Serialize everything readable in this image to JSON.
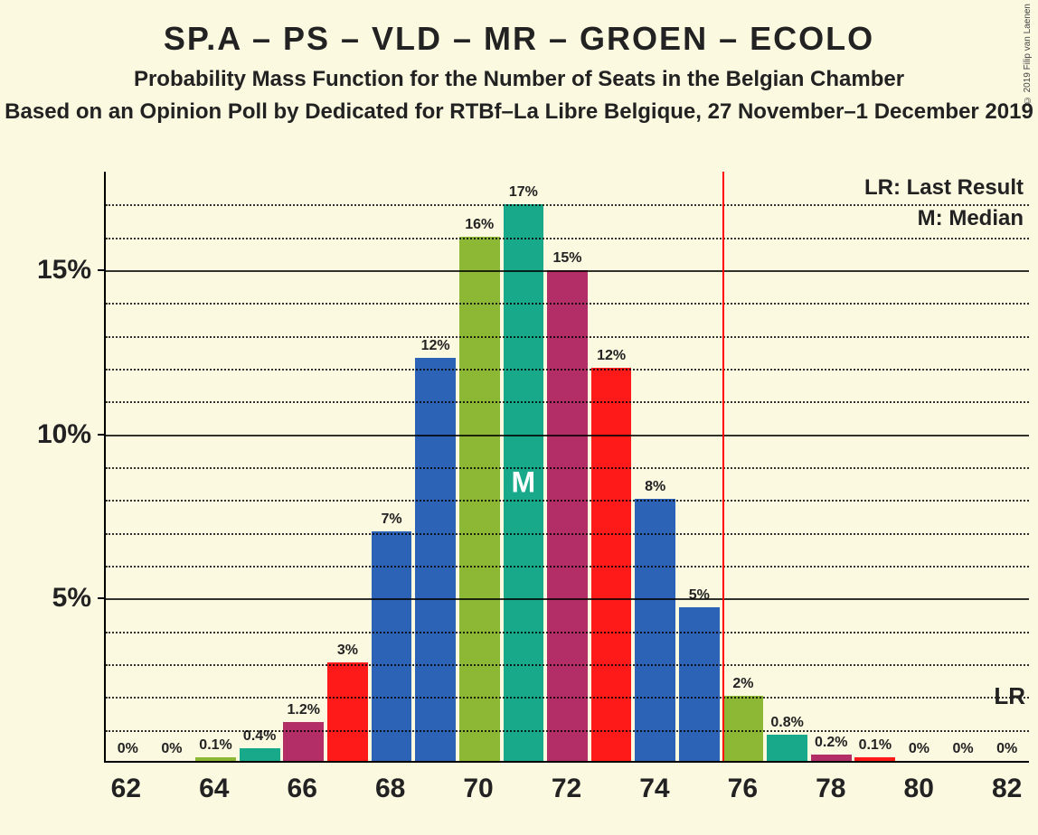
{
  "title": "SP.A – PS – VLD – MR – GROEN – ECOLO",
  "subtitle": "Probability Mass Function for the Number of Seats in the Belgian Chamber",
  "subtitle2": "Based on an Opinion Poll by Dedicated for RTBf–La Libre Belgique, 27 November–1 December 2019",
  "copyright": "© 2019 Filip van Laenen",
  "legend": {
    "lr": "LR: Last Result",
    "median": "M: Median"
  },
  "chart": {
    "type": "bar",
    "background": "#fbf9e0",
    "ymax": 18,
    "yticks_major": [
      5,
      10,
      15
    ],
    "yticks_minor": [
      1,
      2,
      3,
      4,
      6,
      7,
      8,
      9,
      11,
      12,
      13,
      14,
      16,
      17
    ],
    "xticks": [
      62,
      64,
      66,
      68,
      70,
      72,
      74,
      76,
      78,
      80,
      82
    ],
    "xmin": 61.5,
    "xmax": 82.5,
    "bar_width": 0.92,
    "median_seat": 71,
    "median_label": "M",
    "median_text_color": "#ffffff",
    "lr_seat": 76,
    "lr_label": "LR",
    "lr_line_color": "#ff0000",
    "colors_cycle": [
      "#2d63b7",
      "#8cb836",
      "#17a98a",
      "#b32d66",
      "#ff1a1a"
    ],
    "bars": [
      {
        "x": 62,
        "v": 0,
        "label": "0%",
        "color": "#b32d66"
      },
      {
        "x": 63,
        "v": 0,
        "label": "0%",
        "color": "#ff1a1a"
      },
      {
        "x": 64,
        "v": 0.1,
        "label": "0.1%",
        "color": "#8cb836"
      },
      {
        "x": 65,
        "v": 0.4,
        "label": "0.4%",
        "color": "#17a98a"
      },
      {
        "x": 66,
        "v": 1.2,
        "label": "1.2%",
        "color": "#b32d66"
      },
      {
        "x": 67,
        "v": 3,
        "label": "3%",
        "color": "#ff1a1a"
      },
      {
        "x": 68,
        "v": 7,
        "label": "7%",
        "color": "#2d63b7"
      },
      {
        "x": 69,
        "v": 12.3,
        "label": "12%",
        "color": "#2d63b7"
      },
      {
        "x": 70,
        "v": 16,
        "label": "16%",
        "color": "#8cb836"
      },
      {
        "x": 71,
        "v": 17,
        "label": "17%",
        "color": "#17a98a"
      },
      {
        "x": 72,
        "v": 15,
        "label": "15%",
        "color": "#b32d66"
      },
      {
        "x": 73,
        "v": 12,
        "label": "12%",
        "color": "#ff1a1a"
      },
      {
        "x": 74,
        "v": 8,
        "label": "8%",
        "color": "#2d63b7"
      },
      {
        "x": 75,
        "v": 4.7,
        "label": "5%",
        "color": "#2d63b7"
      },
      {
        "x": 76,
        "v": 2,
        "label": "2%",
        "color": "#8cb836"
      },
      {
        "x": 77,
        "v": 0.8,
        "label": "0.8%",
        "color": "#17a98a"
      },
      {
        "x": 78,
        "v": 0.2,
        "label": "0.2%",
        "color": "#b32d66"
      },
      {
        "x": 79,
        "v": 0.1,
        "label": "0.1%",
        "color": "#ff1a1a"
      },
      {
        "x": 80,
        "v": 0,
        "label": "0%",
        "color": "#2d63b7"
      },
      {
        "x": 81,
        "v": 0,
        "label": "0%",
        "color": "#8cb836"
      },
      {
        "x": 82,
        "v": 0,
        "label": "0%",
        "color": "#17a98a"
      }
    ]
  }
}
